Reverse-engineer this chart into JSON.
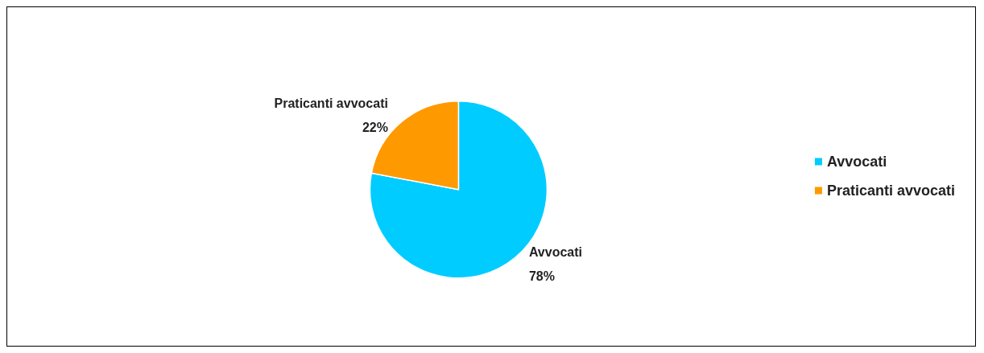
{
  "chart_data": {
    "type": "pie",
    "categories": [
      "Avvocati",
      "Praticanti avvocati"
    ],
    "values": [
      78,
      22
    ],
    "colors": [
      "#00ccff",
      "#ff9900"
    ],
    "value_labels": [
      "78%",
      "22%"
    ],
    "legend": "right"
  }
}
